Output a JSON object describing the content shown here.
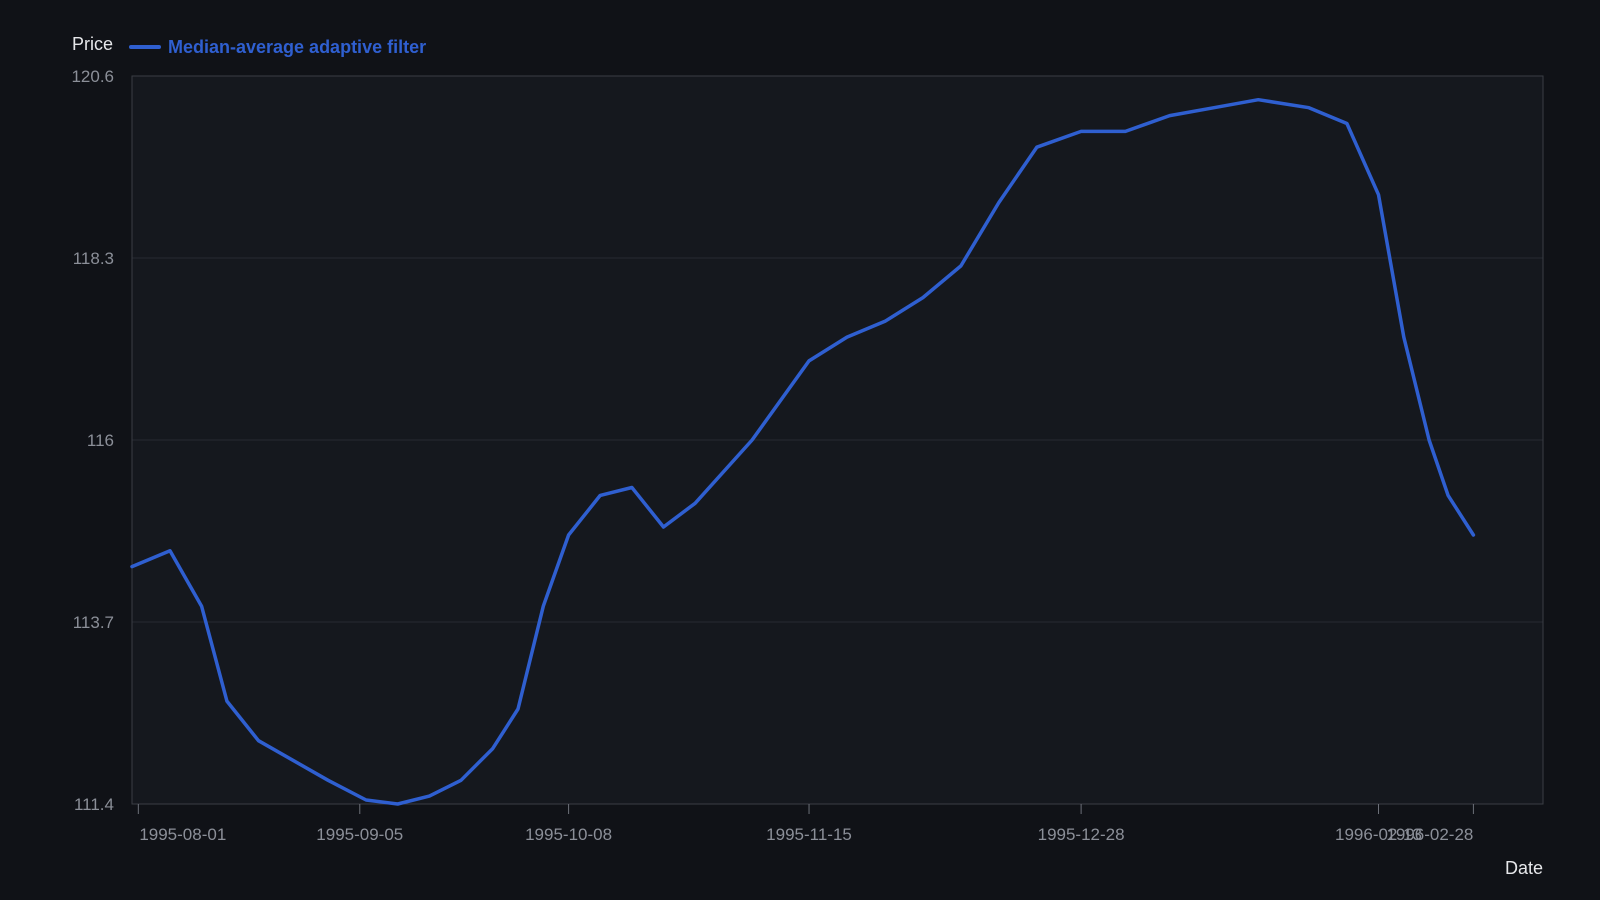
{
  "chart_data": {
    "type": "line",
    "title": "",
    "xlabel": "Date",
    "ylabel": "Price",
    "ylim": [
      111.4,
      120.6
    ],
    "xlim": [
      "1995-07-31",
      "1996-03-10"
    ],
    "y_ticks": [
      "111.4",
      "113.7",
      "116",
      "118.3",
      "120.6"
    ],
    "x_ticks": [
      {
        "date": "1995-08-01",
        "label": "1995-08-01"
      },
      {
        "date": "1995-09-05",
        "label": "1995-09-05"
      },
      {
        "date": "1995-10-08",
        "label": "1995-10-08"
      },
      {
        "date": "1995-11-15",
        "label": "1995-11-15"
      },
      {
        "date": "1995-12-28",
        "label": "1995-12-28"
      },
      {
        "date": "1996-02-13",
        "label": "1996-02-13"
      },
      {
        "date": "1996-02-28",
        "label": "1996-02-28"
      }
    ],
    "grid": "horizontal",
    "legend_position": "top-left",
    "series": [
      {
        "name": "Median-average adaptive filter",
        "color": "#2f5fd0",
        "points": [
          [
            "1995-07-31",
            114.4
          ],
          [
            "1995-08-06",
            114.6
          ],
          [
            "1995-08-11",
            113.9
          ],
          [
            "1995-08-15",
            112.7
          ],
          [
            "1995-08-20",
            112.2
          ],
          [
            "1995-08-31",
            111.7
          ],
          [
            "1995-09-06",
            111.45
          ],
          [
            "1995-09-11",
            111.4
          ],
          [
            "1995-09-16",
            111.5
          ],
          [
            "1995-09-21",
            111.7
          ],
          [
            "1995-09-26",
            112.1
          ],
          [
            "1995-09-30",
            112.6
          ],
          [
            "1995-10-04",
            113.9
          ],
          [
            "1995-10-08",
            114.8
          ],
          [
            "1995-10-13",
            115.3
          ],
          [
            "1995-10-18",
            115.4
          ],
          [
            "1995-10-23",
            114.9
          ],
          [
            "1995-10-28",
            115.2
          ],
          [
            "1995-11-06",
            116.0
          ],
          [
            "1995-11-15",
            117.0
          ],
          [
            "1995-11-21",
            117.3
          ],
          [
            "1995-11-27",
            117.5
          ],
          [
            "1995-12-03",
            117.8
          ],
          [
            "1995-12-09",
            118.2
          ],
          [
            "1995-12-15",
            119.0
          ],
          [
            "1995-12-21",
            119.7
          ],
          [
            "1995-12-28",
            119.9
          ],
          [
            "1996-01-04",
            119.9
          ],
          [
            "1996-01-11",
            120.1
          ],
          [
            "1996-01-18",
            120.2
          ],
          [
            "1996-01-25",
            120.3
          ],
          [
            "1996-02-02",
            120.2
          ],
          [
            "1996-02-08",
            120.0
          ],
          [
            "1996-02-13",
            119.1
          ],
          [
            "1996-02-17",
            117.3
          ],
          [
            "1996-02-21",
            116.0
          ],
          [
            "1996-02-24",
            115.3
          ],
          [
            "1996-02-28",
            114.8
          ]
        ]
      }
    ],
    "colors": {
      "background": "#101217",
      "plot_background": "#15181e",
      "gridline": "#272a31",
      "axis_line": "#3a3d44",
      "tick_label": "#8b8f98",
      "axis_title": "#e6e7ea"
    }
  }
}
